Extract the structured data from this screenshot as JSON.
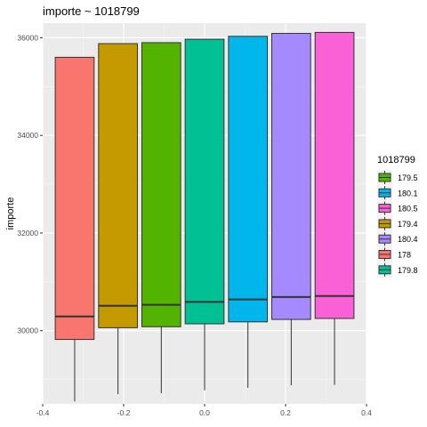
{
  "chart_data": {
    "type": "boxplot",
    "title": "importe ~ 1018799",
    "xlabel": "",
    "ylabel": "importe",
    "xlim": [
      -0.4,
      0.4
    ],
    "ylim": [
      28500,
      36300
    ],
    "x_ticks": [
      -0.4,
      -0.2,
      0.0,
      0.2,
      0.4
    ],
    "x_tick_labels": [
      "-0.4",
      "-0.2",
      "0.0",
      "0.2",
      "0.4"
    ],
    "y_ticks": [
      30000,
      32000,
      34000,
      36000
    ],
    "y_tick_labels": [
      "30000",
      "32000",
      "34000",
      "36000"
    ],
    "grid": true,
    "legend": {
      "title": "1018799",
      "placement": "right",
      "entries": [
        {
          "label": "179.5",
          "color": "#53B400"
        },
        {
          "label": "180.1",
          "color": "#00B6EB"
        },
        {
          "label": "180.5",
          "color": "#FB61D7"
        },
        {
          "label": "179.4",
          "color": "#C49A00"
        },
        {
          "label": "180.4",
          "color": "#A58AFF"
        },
        {
          "label": "178",
          "color": "#F8766D"
        },
        {
          "label": "179.8",
          "color": "#00C094"
        }
      ]
    },
    "boxes": [
      {
        "group": "178",
        "x": -0.321,
        "lower": 28550,
        "q1": 29820,
        "median": 30290,
        "q3": 35600,
        "upper": 35600,
        "color": "#F8766D"
      },
      {
        "group": "179.4",
        "x": -0.214,
        "lower": 28700,
        "q1": 30060,
        "median": 30510,
        "q3": 35880,
        "upper": 35880,
        "color": "#C49A00"
      },
      {
        "group": "179.5",
        "x": -0.107,
        "lower": 28720,
        "q1": 30080,
        "median": 30530,
        "q3": 35900,
        "upper": 35900,
        "color": "#53B400"
      },
      {
        "group": "179.8",
        "x": 0.0,
        "lower": 28780,
        "q1": 30140,
        "median": 30590,
        "q3": 35970,
        "upper": 35970,
        "color": "#00C094"
      },
      {
        "group": "180.1",
        "x": 0.107,
        "lower": 28830,
        "q1": 30180,
        "median": 30640,
        "q3": 36030,
        "upper": 36030,
        "color": "#00B6EB"
      },
      {
        "group": "180.4",
        "x": 0.214,
        "lower": 28880,
        "q1": 30230,
        "median": 30690,
        "q3": 36090,
        "upper": 36090,
        "color": "#A58AFF"
      },
      {
        "group": "180.5",
        "x": 0.321,
        "lower": 28890,
        "q1": 30250,
        "median": 30710,
        "q3": 36110,
        "upper": 36110,
        "color": "#FB61D7"
      }
    ]
  }
}
